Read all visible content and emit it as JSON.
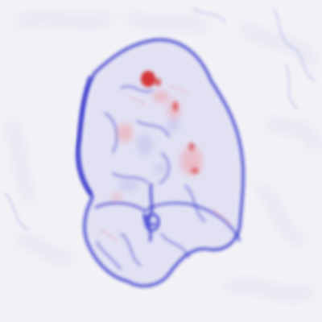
{
  "image": {
    "kind": "diverging-colormap-heatmap",
    "colormap": "blue-white-red",
    "colors": {
      "background": "#eeeef4",
      "negative_strong": "#2424c8",
      "negative_light": "#9a9ae6",
      "neutral": "#f2f2f6",
      "positive_light": "#f0a0a8",
      "positive_strong": "#d21818"
    }
  }
}
